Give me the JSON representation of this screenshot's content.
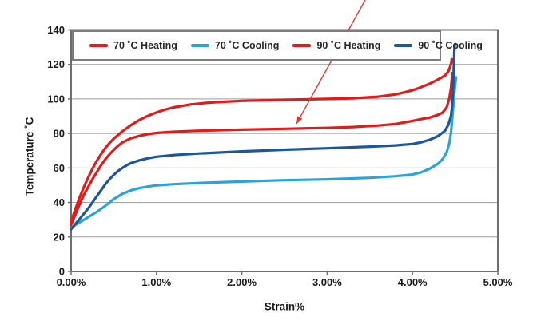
{
  "chart_data": {
    "type": "line",
    "title": "",
    "xlabel": "Strain%",
    "ylabel": "Temperature ˚C",
    "xlim": [
      0,
      5
    ],
    "ylim": [
      0,
      140
    ],
    "grid": "horizontal",
    "legend_position": "top-inside",
    "x_ticks": {
      "values": [
        0,
        1,
        2,
        3,
        4,
        5
      ],
      "labels": [
        "0.00%",
        "1.00%",
        "2.00%",
        "3.00%",
        "4.00%",
        "5.00%"
      ]
    },
    "y_ticks": {
      "values": [
        0,
        20,
        40,
        60,
        80,
        100,
        120,
        140
      ],
      "labels": [
        "0",
        "20",
        "40",
        "60",
        "80",
        "100",
        "120",
        "140"
      ]
    },
    "series": [
      {
        "name": "70 ˚C Heating",
        "color": "#e01b1b",
        "points": [
          [
            0,
            27
          ],
          [
            0.05,
            33
          ],
          [
            0.1,
            39
          ],
          [
            0.15,
            44.5
          ],
          [
            0.2,
            49
          ],
          [
            0.25,
            53.5
          ],
          [
            0.3,
            57.5
          ],
          [
            0.35,
            61.5
          ],
          [
            0.4,
            65
          ],
          [
            0.45,
            68
          ],
          [
            0.5,
            70.5
          ],
          [
            0.55,
            72.8
          ],
          [
            0.6,
            74.8
          ],
          [
            0.7,
            77.2
          ],
          [
            0.8,
            78.6
          ],
          [
            0.9,
            79.6
          ],
          [
            1,
            80.3
          ],
          [
            1.2,
            81
          ],
          [
            1.5,
            81.6
          ],
          [
            2,
            82.2
          ],
          [
            2.5,
            82.7
          ],
          [
            3,
            83.2
          ],
          [
            3.3,
            83.7
          ],
          [
            3.6,
            84.6
          ],
          [
            3.8,
            85.5
          ],
          [
            4,
            87.3
          ],
          [
            4.1,
            88.3
          ],
          [
            4.2,
            89.2
          ],
          [
            4.3,
            90.8
          ],
          [
            4.35,
            92
          ],
          [
            4.4,
            95
          ],
          [
            4.43,
            100
          ],
          [
            4.45,
            106
          ],
          [
            4.46,
            111
          ],
          [
            4.465,
            115
          ]
        ]
      },
      {
        "name": "70 ˚C Cooling",
        "color": "#2ba3da",
        "points": [
          [
            0,
            25
          ],
          [
            0.05,
            27
          ],
          [
            0.1,
            28.5
          ],
          [
            0.15,
            30
          ],
          [
            0.2,
            31.5
          ],
          [
            0.3,
            34.5
          ],
          [
            0.4,
            38
          ],
          [
            0.5,
            42
          ],
          [
            0.6,
            45
          ],
          [
            0.7,
            47
          ],
          [
            0.8,
            48.3
          ],
          [
            0.9,
            49.2
          ],
          [
            1,
            49.9
          ],
          [
            1.2,
            50.6
          ],
          [
            1.5,
            51.3
          ],
          [
            2,
            52.1
          ],
          [
            2.5,
            52.9
          ],
          [
            3,
            53.4
          ],
          [
            3.5,
            54.3
          ],
          [
            3.8,
            55.2
          ],
          [
            4,
            56.2
          ],
          [
            4.1,
            57.5
          ],
          [
            4.2,
            59.5
          ],
          [
            4.3,
            62.5
          ],
          [
            4.35,
            65
          ],
          [
            4.4,
            69
          ],
          [
            4.43,
            74
          ],
          [
            4.45,
            80
          ],
          [
            4.46,
            85
          ],
          [
            4.47,
            91
          ],
          [
            4.48,
            97
          ],
          [
            4.49,
            103
          ],
          [
            4.5,
            108
          ],
          [
            4.51,
            112.5
          ]
        ]
      },
      {
        "name": "90 ˚C Heating",
        "color": "#e01b1b",
        "points": [
          [
            0,
            29
          ],
          [
            0.05,
            36
          ],
          [
            0.1,
            43
          ],
          [
            0.15,
            49
          ],
          [
            0.2,
            54.5
          ],
          [
            0.25,
            59.5
          ],
          [
            0.3,
            64
          ],
          [
            0.35,
            68
          ],
          [
            0.4,
            71.5
          ],
          [
            0.45,
            74.5
          ],
          [
            0.5,
            77
          ],
          [
            0.6,
            81.2
          ],
          [
            0.7,
            84.8
          ],
          [
            0.8,
            87.8
          ],
          [
            0.9,
            90.2
          ],
          [
            1,
            92.2
          ],
          [
            1.1,
            93.8
          ],
          [
            1.2,
            95.1
          ],
          [
            1.4,
            96.8
          ],
          [
            1.6,
            97.8
          ],
          [
            1.8,
            98.4
          ],
          [
            2,
            98.9
          ],
          [
            2.5,
            99.5
          ],
          [
            3,
            100
          ],
          [
            3.3,
            100.4
          ],
          [
            3.6,
            101.3
          ],
          [
            3.8,
            102.6
          ],
          [
            4,
            105
          ],
          [
            4.1,
            106.8
          ],
          [
            4.2,
            108.8
          ],
          [
            4.3,
            111.3
          ],
          [
            4.38,
            113.5
          ],
          [
            4.42,
            116
          ],
          [
            4.44,
            118.5
          ],
          [
            4.455,
            121
          ],
          [
            4.46,
            123
          ]
        ]
      },
      {
        "name": "90 ˚C Cooling",
        "color": "#1e5799",
        "points": [
          [
            0,
            24.5
          ],
          [
            0.05,
            27.5
          ],
          [
            0.1,
            30.5
          ],
          [
            0.15,
            33.5
          ],
          [
            0.2,
            36.5
          ],
          [
            0.25,
            40
          ],
          [
            0.3,
            43.5
          ],
          [
            0.35,
            47
          ],
          [
            0.4,
            50.5
          ],
          [
            0.45,
            53.5
          ],
          [
            0.5,
            56
          ],
          [
            0.55,
            58.2
          ],
          [
            0.6,
            60
          ],
          [
            0.65,
            61.5
          ],
          [
            0.7,
            62.8
          ],
          [
            0.8,
            64.4
          ],
          [
            0.9,
            65.6
          ],
          [
            1,
            66.5
          ],
          [
            1.2,
            67.5
          ],
          [
            1.5,
            68.4
          ],
          [
            2,
            69.6
          ],
          [
            2.5,
            70.6
          ],
          [
            3,
            71.4
          ],
          [
            3.5,
            72.4
          ],
          [
            3.8,
            73.1
          ],
          [
            4,
            73.9
          ],
          [
            4.1,
            74.9
          ],
          [
            4.2,
            76.3
          ],
          [
            4.3,
            78.5
          ],
          [
            4.38,
            81.5
          ],
          [
            4.42,
            85
          ],
          [
            4.45,
            90
          ],
          [
            4.46,
            94
          ],
          [
            4.47,
            100
          ],
          [
            4.475,
            105
          ],
          [
            4.48,
            112
          ],
          [
            4.485,
            120
          ],
          [
            4.49,
            127
          ],
          [
            4.494,
            131.5
          ],
          [
            4.5,
            131.8
          ]
        ]
      }
    ],
    "annotation": {
      "type": "arrow",
      "color": "#d93a30",
      "points_at": "70 ˚C Heating curve"
    }
  },
  "style_colors": {
    "gridline": "#9b9b9b",
    "plot_border": "#6e6e6e",
    "tick_text": "#1a1a1a"
  }
}
